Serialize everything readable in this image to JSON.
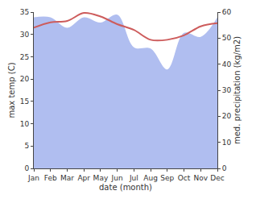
{
  "chart_data": {
    "type": "line",
    "x_label": "date (month)",
    "y_label": "max temp (C)",
    "y2_label": "med. precipitation (kg/m2)",
    "categories": [
      "Jan",
      "Feb",
      "Mar",
      "Apr",
      "May",
      "Jun",
      "Jul",
      "Aug",
      "Sep",
      "Oct",
      "Nov",
      "Dec"
    ],
    "series": [
      {
        "name": "med. precipitation (kg/m2)",
        "type": "area",
        "axis": "y2",
        "color": "#b0bef0",
        "values": [
          58,
          58,
          54,
          58,
          56,
          59,
          46.5,
          46,
          38,
          52,
          50.5,
          58
        ]
      },
      {
        "name": "max temp (C)",
        "type": "line",
        "axis": "y",
        "color": "#cd5c5c",
        "values": [
          31.5,
          32.7,
          33,
          34.8,
          34,
          32.3,
          31,
          28.8,
          28.8,
          29.8,
          31.8,
          32.5
        ]
      }
    ],
    "ylim": [
      0,
      35
    ],
    "yticks": [
      0,
      5,
      10,
      15,
      20,
      25,
      30,
      35
    ],
    "y2lim": [
      0,
      60
    ],
    "y2ticks": [
      0,
      10,
      20,
      30,
      40,
      50,
      60
    ],
    "grid": false
  }
}
